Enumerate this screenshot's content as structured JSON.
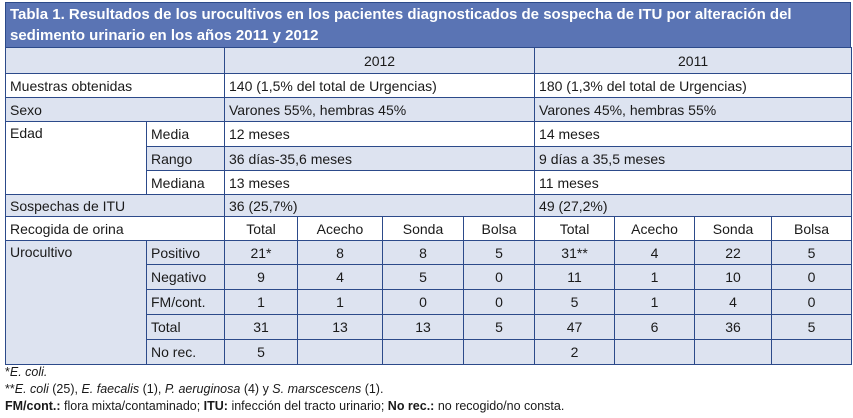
{
  "title": "Tabla 1. Resultados de los urocultivos en los pacientes diagnosticados de sospecha de ITU por alteración del sedimento urinario en los años 2011 y 2012",
  "colors": {
    "title_bg": "#5a74b4",
    "shade": "#dde3f0",
    "border": "#2c4a8a"
  },
  "headers": {
    "y2012": "2012",
    "y2011": "2011"
  },
  "muestras": {
    "label": "Muestras obtenidas",
    "v2012": "140 (1,5% del total de Urgencias)",
    "v2011": "180 (1,3% del total de Urgencias)"
  },
  "sexo": {
    "label": "Sexo",
    "v2012": "Varones 55%, hembras 45%",
    "v2011": "Varones 45%, hembras 55%"
  },
  "edad": {
    "label": "Edad",
    "rows": [
      {
        "label": "Media",
        "v2012": "12 meses",
        "v2011": "14 meses"
      },
      {
        "label": "Rango",
        "v2012": "36 días-35,6 meses",
        "v2011": "9 días a 35,5 meses"
      },
      {
        "label": "Mediana",
        "v2012": "13 meses",
        "v2011": "11 meses"
      }
    ]
  },
  "sospechas": {
    "label": "Sospechas de ITU",
    "v2012": "36 (25,7%)",
    "v2011": "49 (27,2%)"
  },
  "recogida": {
    "label": "Recogida de orina",
    "cols": [
      "Total",
      "Acecho",
      "Sonda",
      "Bolsa",
      "Total",
      "Acecho",
      "Sonda",
      "Bolsa"
    ]
  },
  "urocultivo": {
    "label": "Urocultivo",
    "rows": [
      {
        "label": "Positivo",
        "values": [
          "21*",
          "8",
          "8",
          "5",
          "31**",
          "4",
          "22",
          "5"
        ]
      },
      {
        "label": "Negativo",
        "values": [
          "9",
          "4",
          "5",
          "0",
          "11",
          "1",
          "10",
          "0"
        ]
      },
      {
        "label": "FM/cont.",
        "values": [
          "1",
          "1",
          "0",
          "0",
          "5",
          "1",
          "4",
          "0"
        ]
      },
      {
        "label": "Total",
        "values": [
          "31",
          "13",
          "13",
          "5",
          "47",
          "6",
          "36",
          "5"
        ]
      },
      {
        "label": "No rec.",
        "values": [
          "5",
          "",
          "",
          "",
          "2",
          "",
          "",
          ""
        ]
      }
    ]
  },
  "notes": {
    "n1_mark": "*",
    "n1_text": "E. coli.",
    "n2_mark": "**",
    "n2_a": "E. coli",
    "n2_b": " (25), ",
    "n2_c": "E. faecalis",
    "n2_d": " (1), ",
    "n2_e": "P. aeruginosa",
    "n2_f": " (4) y ",
    "n2_g": "S. marscescens",
    "n2_h": " (1).",
    "n3_a": "FM/cont.:",
    "n3_b": " flora mixta/contaminado; ",
    "n3_c": "ITU:",
    "n3_d": " infección del tracto urinario; ",
    "n3_e": "No rec.:",
    "n3_f": " no recogido/no consta."
  }
}
